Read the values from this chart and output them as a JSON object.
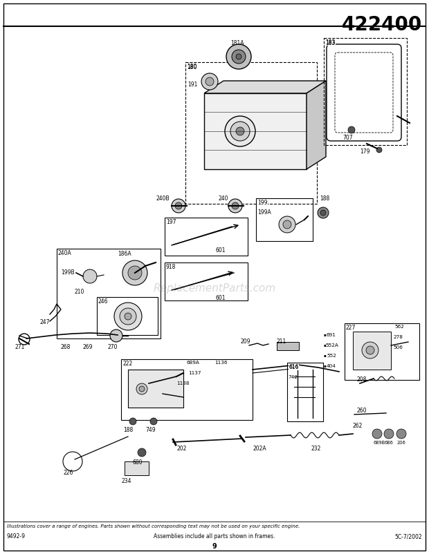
{
  "title": "422400",
  "page_number": "9",
  "left_code": "9492-9",
  "center_text": "Assemblies include all parts shown in frames.",
  "right_code": "5C-7/2002",
  "footnote": "Illustrations cover a range of engines. Parts shown without corresponding text may not be used on your specific engine.",
  "bg_color": "#ffffff",
  "border_color": "#000000",
  "watermark": "ReplacementParts.com"
}
